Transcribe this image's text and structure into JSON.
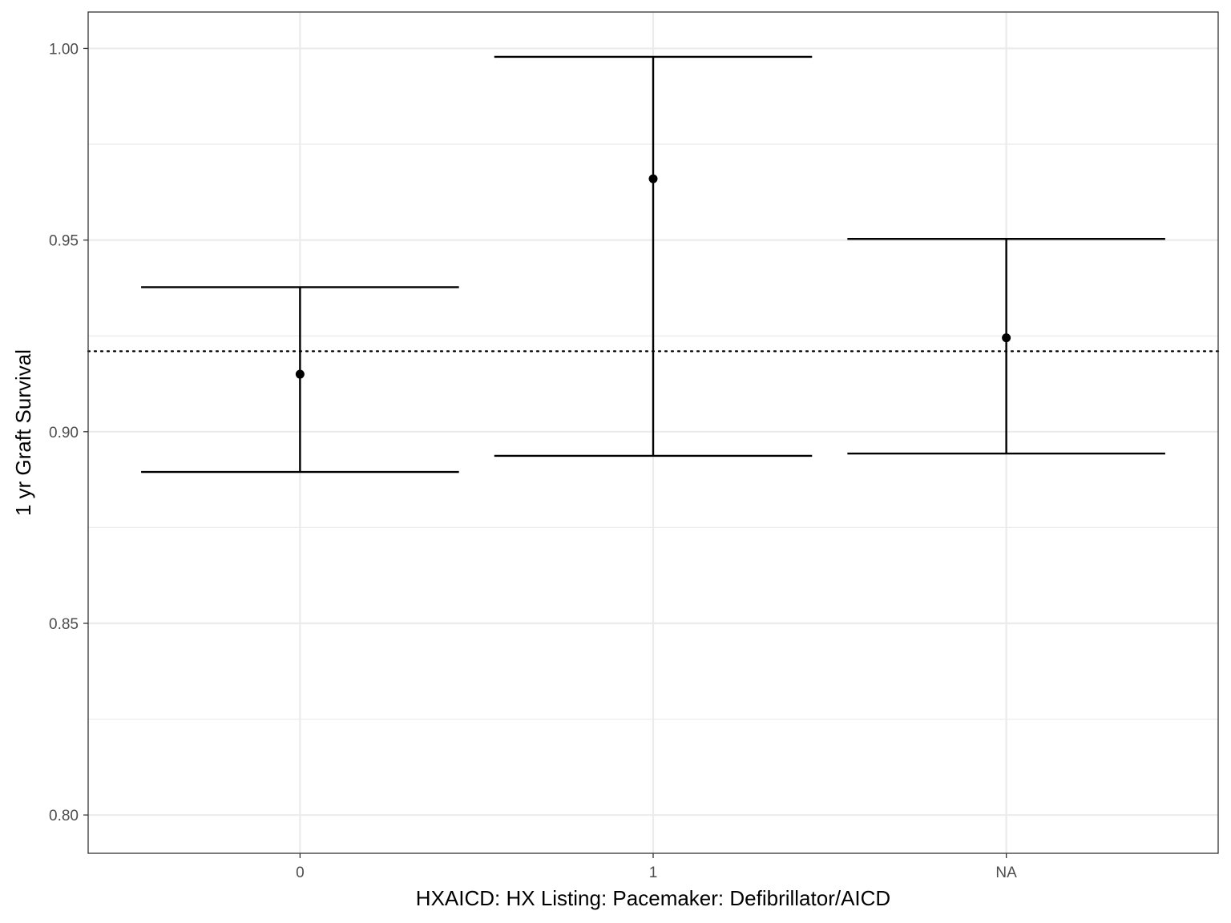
{
  "chart_data": {
    "type": "errorbar",
    "xlabel": "HXAICD: HX Listing: Pacemaker: Defibrillator/AICD",
    "ylabel": "1 yr Graft Survival",
    "categories": [
      "0",
      "1",
      "NA"
    ],
    "estimates": [
      0.915,
      0.966,
      0.9245
    ],
    "lower": [
      0.8895,
      0.8937,
      0.8943
    ],
    "upper": [
      0.9377,
      0.9978,
      0.9503
    ],
    "reference_line": {
      "value": 0.921,
      "style": "dotted"
    },
    "ylim": [
      0.79,
      1.0095
    ],
    "y_ticks": [
      0.8,
      0.85,
      0.9,
      0.95,
      1.0
    ],
    "y_tick_labels": [
      "0.80",
      "0.85",
      "0.90",
      "0.95",
      "1.00"
    ],
    "grid": true,
    "theme": "bw",
    "colors": {
      "marks": "#000000",
      "grid": "#ebebeb",
      "panel_border": "#333333",
      "tick_label": "#4d4d4d"
    }
  }
}
